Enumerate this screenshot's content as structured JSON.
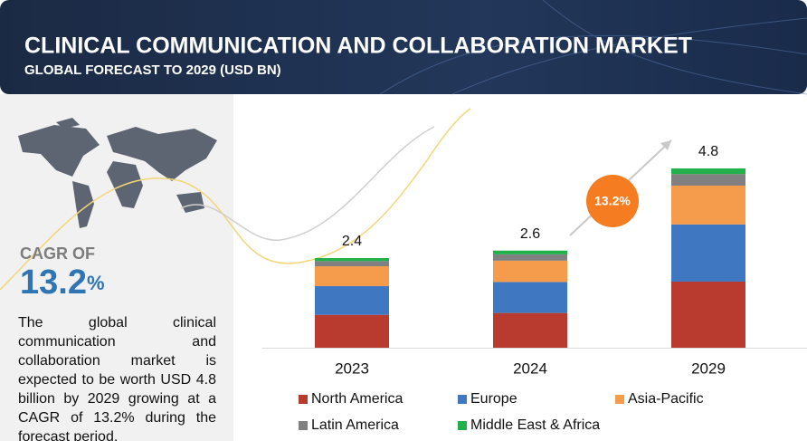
{
  "header": {
    "title": "CLINICAL COMMUNICATION AND COLLABORATION MARKET",
    "subtitle": "GLOBAL FORECAST TO 2029 (USD BN)"
  },
  "sidebar": {
    "cagr_label": "CAGR OF",
    "cagr_value": "13.2",
    "cagr_unit": "%",
    "description": "The global clinical communication and collaboration market is expected to be worth USD 4.8 billion by 2029 growing at a CAGR of 13.2% during the forecast period."
  },
  "chart_data": {
    "type": "stacked_bar",
    "categories": [
      "2023",
      "2024",
      "2029"
    ],
    "totals": [
      2.4,
      2.6,
      4.8
    ],
    "cagr_badge": "13.2%",
    "series": [
      {
        "name": "North America",
        "color": "#b93a2f",
        "values": [
          0.88,
          0.93,
          1.77
        ]
      },
      {
        "name": "Europe",
        "color": "#3f78c1",
        "values": [
          0.77,
          0.83,
          1.53
        ]
      },
      {
        "name": "Asia-Pacific",
        "color": "#f59b4c",
        "values": [
          0.53,
          0.57,
          1.04
        ]
      },
      {
        "name": "Latin America",
        "color": "#808080",
        "values": [
          0.14,
          0.17,
          0.31
        ]
      },
      {
        "name": "Middle East & Africa",
        "color": "#22b04b",
        "values": [
          0.08,
          0.1,
          0.15
        ]
      }
    ]
  }
}
